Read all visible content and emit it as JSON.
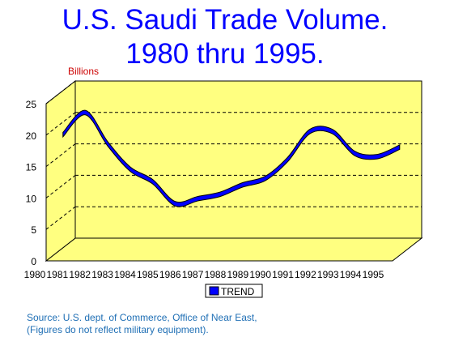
{
  "title_line1": "U.S. Saudi Trade Volume.",
  "title_line2": "1980 thru 1995.",
  "source_line1": "Source: U.S. dept. of Commerce, Office of Near East,",
  "source_line2": " (Figures do not reflect military equipment).",
  "colors": {
    "title": "#0000ff",
    "plot_background": "#ffff80",
    "series": "#0000ff",
    "units_label": "#cc0000",
    "source": "#1f6fb5"
  },
  "chart_data": {
    "type": "area",
    "units_label": "Billions",
    "x": [
      "1980",
      "1981",
      "1982",
      "1983",
      "1984",
      "1985",
      "1986",
      "1987",
      "1988",
      "1989",
      "1990",
      "1991",
      "1992",
      "1993",
      "1994",
      "1995"
    ],
    "series": [
      {
        "name": "TREND",
        "values": [
          19,
          22.5,
          17.5,
          13.5,
          11.5,
          8,
          8.8,
          9.5,
          11,
          12,
          15,
          19.5,
          19.5,
          16,
          15.5,
          17
        ]
      }
    ],
    "yticks": [
      0,
      5,
      10,
      15,
      20,
      25
    ],
    "ylim": [
      0,
      25
    ],
    "grid": true,
    "legend": "bottom-center",
    "style": "3d-ribbon"
  }
}
